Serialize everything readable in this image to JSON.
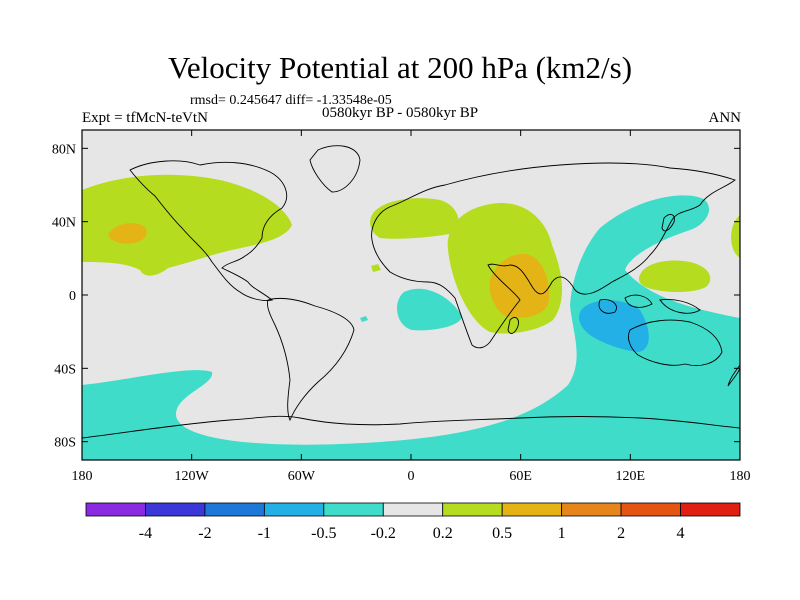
{
  "title": "Velocity Potential at 200 hPa (km2/s)",
  "stats_line": "rmsd= 0.245647 diff= -1.33548e-05",
  "left_label": "Expt = tfMcN-teVtN",
  "center_label": "0580kyr BP - 0580kyr BP",
  "right_label": "ANN",
  "lat_ticks": [
    {
      "label": "80N",
      "value": 80
    },
    {
      "label": "40N",
      "value": 40
    },
    {
      "label": "0",
      "value": 0
    },
    {
      "label": "40S",
      "value": -40
    },
    {
      "label": "80S",
      "value": -80
    }
  ],
  "lon_ticks": [
    {
      "label": "180",
      "value": -180
    },
    {
      "label": "120W",
      "value": -120
    },
    {
      "label": "60W",
      "value": -60
    },
    {
      "label": "0",
      "value": 0
    },
    {
      "label": "60E",
      "value": 60
    },
    {
      "label": "120E",
      "value": 120
    },
    {
      "label": "180",
      "value": 180
    }
  ],
  "colorbar": {
    "colors": [
      "#8a2be2",
      "#3b37d9",
      "#1f78d8",
      "#22b0e6",
      "#3fdcc9",
      "#e6e6e6",
      "#b6dc20",
      "#e4b417",
      "#e5851a",
      "#e45514",
      "#e01e12"
    ],
    "labels": [
      "-4",
      "-2",
      "-1",
      "-0.5",
      "-0.2",
      "0.2",
      "0.5",
      "1",
      "2",
      "4"
    ]
  },
  "colors": {
    "background": "#e6e6e6",
    "positive_weak": "#b6dc20",
    "positive_mid": "#e4b417",
    "negative_weak": "#3fdcc9",
    "negative_mid": "#22b0e6"
  }
}
